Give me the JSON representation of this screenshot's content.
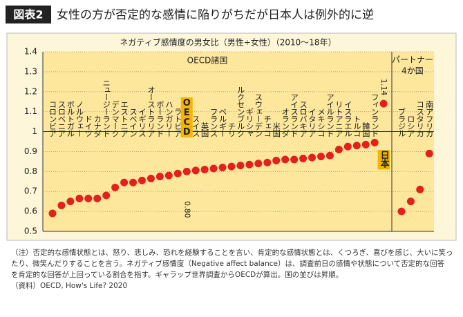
{
  "header": {
    "badge": "図表2",
    "title": "女性の方が否定的な感情に陥りがちだが日本人は例外的に逆"
  },
  "chart_data": {
    "type": "scatter",
    "title": "ネガティブ感情度の男女比（男性÷女性）（2010～18年）",
    "ylim": [
      0.5,
      1.4
    ],
    "yticks": [
      0.5,
      0.6,
      0.7,
      0.8,
      0.9,
      1,
      1.1,
      1.2,
      1.3,
      1.4
    ],
    "reference_line": 1,
    "color": "#e3201b",
    "highlight_color": "#f5b400",
    "grid": true,
    "groups": [
      {
        "name": "OECD諸国",
        "categories": [
          "コロンビア",
          "スロベニア",
          "ポルトガル",
          "ノルウェー",
          "ドイツ",
          "カナダ",
          "ニュージーランド",
          "デンマーク",
          "エストニア",
          "スペイン",
          "イギリス",
          "オーストラリア",
          "ポーランド",
          "ハンガリー",
          "ラトビア",
          "OECD",
          "スイス",
          "英国",
          "フランス",
          "ベルギー",
          "チリ",
          "ルクセンブルク",
          "ギリシャ",
          "スウェーデン",
          "チェコ",
          "米国",
          "オランダ",
          "アイスランド",
          "スロバキア",
          "イタリア",
          "メキシコ",
          "アイルランド",
          "リトアニア",
          "イスラエル",
          "トルコ",
          "韓国",
          "フィンランド",
          "日本"
        ],
        "values": [
          0.59,
          0.63,
          0.65,
          0.665,
          0.665,
          0.665,
          0.68,
          0.72,
          0.745,
          0.745,
          0.755,
          0.765,
          0.775,
          0.78,
          0.79,
          0.8,
          0.805,
          0.81,
          0.815,
          0.82,
          0.825,
          0.83,
          0.835,
          0.84,
          0.845,
          0.855,
          0.86,
          0.86,
          0.865,
          0.87,
          0.875,
          0.88,
          0.91,
          0.925,
          0.93,
          0.935,
          0.945,
          1.14
        ],
        "value_labels": [
          null,
          null,
          null,
          null,
          null,
          null,
          null,
          null,
          null,
          null,
          null,
          null,
          null,
          null,
          null,
          "0.80",
          null,
          null,
          null,
          null,
          null,
          null,
          null,
          null,
          null,
          null,
          null,
          null,
          null,
          null,
          null,
          null,
          null,
          null,
          null,
          null,
          null,
          "1.14"
        ],
        "highlight": [
          15,
          37
        ]
      },
      {
        "name_lines": [
          "パートナー",
          "4か国"
        ],
        "categories": [
          "ブラジル",
          "ロシア",
          "コスタリカ",
          "南アフリカ"
        ],
        "values": [
          0.6,
          0.65,
          0.71,
          0.89
        ]
      }
    ]
  },
  "notes": [
    "（注）否定的な感情状態とは、怒り、悲しみ、恐れを経験することを言い、肯定的な感情状態とは、くつろぎ、喜びを感じ、大いに笑っ",
    "たり、微笑んだりすることを言う。ネガティブ感情度（Negative affect balance）は、調査前日の感情や状態について否定的な回答",
    "を肯定的な回答が上回っている割合を指す。ギャラップ世界調査からOECDが算出。国の並びは昇順。",
    "（資料）OECD, How's Life? 2020"
  ]
}
